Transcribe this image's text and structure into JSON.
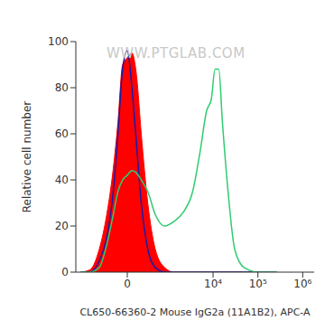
{
  "chart_data": {
    "type": "line",
    "x_label": "CL650-66360-2 Mouse IgG2a (11A1B2), APC-A",
    "y_label": "Relative cell number",
    "annotations": [
      "WWW.PTGLAB.COM"
    ],
    "x": [
      -1330,
      -811,
      -483,
      -306,
      -190,
      -121,
      -59,
      0,
      59,
      121,
      190,
      306,
      483,
      811,
      1330,
      2160,
      3500,
      5100,
      7170,
      9130,
      11060,
      13370,
      16160,
      21580,
      30300,
      49000,
      100600,
      262000
    ],
    "series": [
      {
        "type": "area",
        "color": "#ff0000",
        "values": [
          0,
          1,
          10,
          25,
          45,
          65,
          90,
          93,
          95,
          85,
          60,
          30,
          10,
          2,
          0,
          0,
          0,
          0,
          0,
          0,
          0,
          0,
          0,
          0,
          0,
          0,
          0,
          0
        ]
      },
      {
        "type": "line",
        "color": "#1a1aa8",
        "values": [
          0,
          0,
          5,
          15,
          35,
          60,
          88,
          96,
          80,
          55,
          30,
          10,
          2,
          0,
          0,
          0,
          0,
          0,
          0,
          0,
          0,
          0,
          0,
          0,
          0,
          0,
          0,
          0
        ]
      },
      {
        "type": "line",
        "color": "#2ecc71",
        "values": [
          0,
          0,
          2,
          12,
          25,
          35,
          40,
          42,
          44,
          43,
          40,
          35,
          25,
          20,
          22,
          26,
          35,
          52,
          70,
          75,
          88,
          88,
          65,
          35,
          10,
          2,
          0,
          0
        ]
      }
    ],
    "xlim": [
      -1700,
      1800000
    ],
    "xticks": [
      0,
      {
        "value": 10000,
        "label": "10⁴"
      },
      {
        "value": 100000,
        "label": "10⁵"
      },
      {
        "value": 1000000,
        "label": "10⁶"
      }
    ],
    "ylim": [
      0,
      100
    ],
    "yticks": [
      0,
      20,
      40,
      60,
      80,
      100
    ]
  }
}
